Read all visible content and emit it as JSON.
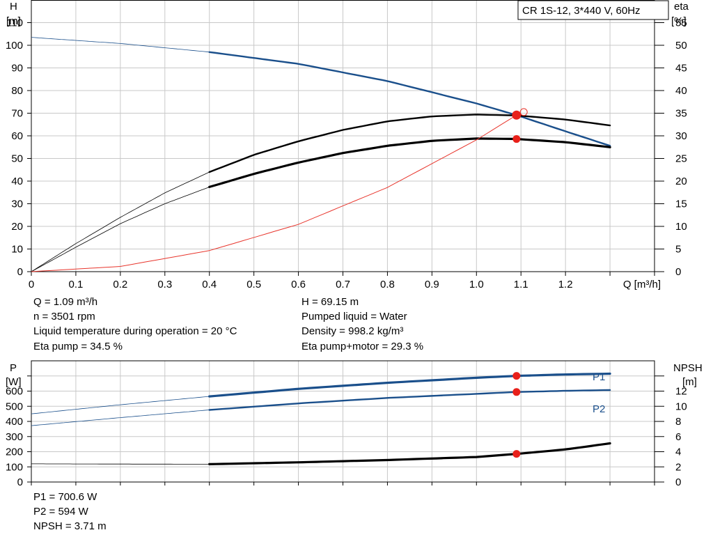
{
  "top_info": {
    "q": "Q = 1.09 m³/h",
    "n": "n = 3501 rpm",
    "liquid_temp": "Liquid temperature during operation = 20 °C",
    "eta_pump": "Eta pump = 34.5 %",
    "h": "H = 69.15 m",
    "pumped_liquid": "Pumped liquid = Water",
    "density": "Density = 998.2 kg/m³",
    "eta_pump_motor": "Eta pump+motor = 29.3 %"
  },
  "bottom_info": {
    "p1": "P1 = 700.6 W",
    "p2": "P2 = 594 W",
    "npsh": "NPSH = 3.71 m"
  },
  "chart_data": [
    {
      "type": "line",
      "title": "CR 1S-12, 3*440 V, 60Hz",
      "xlabel": "Q [m³/h]",
      "ylabel_left": [
        "H",
        "[m]"
      ],
      "ylabel_right": [
        "eta",
        "[%]"
      ],
      "xlim": [
        0,
        1.4
      ],
      "ylim_left": [
        0,
        120
      ],
      "ylim_right": [
        0,
        60
      ],
      "x_ticks": [
        "0",
        "0.1",
        "0.2",
        "0.3",
        "0.4",
        "0.5",
        "0.6",
        "0.7",
        "0.8",
        "0.9",
        "1.0",
        "1.1",
        "1.2"
      ],
      "y_left_ticks": [
        "0",
        "10",
        "20",
        "30",
        "40",
        "50",
        "60",
        "70",
        "80",
        "90",
        "100",
        "110"
      ],
      "y_right_ticks": [
        "0",
        "5",
        "10",
        "15",
        "20",
        "25",
        "30",
        "35",
        "40",
        "45",
        "50",
        "55"
      ],
      "grid": true,
      "series": [
        {
          "axis": "left",
          "color": "#1a4f8b",
          "style": "operating-range",
          "x": [
            0,
            0.2,
            0.4,
            0.6,
            0.8,
            1.0,
            1.09,
            1.2,
            1.3
          ],
          "y": [
            103.5,
            100.8,
            97,
            91.8,
            84.2,
            74.3,
            69.15,
            62,
            55.6
          ]
        },
        {
          "axis": "right",
          "color": "#000000",
          "style": "operating-range",
          "x": [
            0,
            0.1,
            0.2,
            0.3,
            0.4,
            0.5,
            0.6,
            0.7,
            0.8,
            0.9,
            1.0,
            1.09,
            1.2,
            1.3
          ],
          "y": [
            0,
            6.2,
            12,
            17.4,
            22,
            25.8,
            28.8,
            31.3,
            33.2,
            34.3,
            34.7,
            34.5,
            33.6,
            32.3
          ]
        },
        {
          "axis": "right",
          "color": "#000000",
          "style": "operating-range-thick",
          "x": [
            0,
            0.1,
            0.2,
            0.3,
            0.4,
            0.5,
            0.6,
            0.7,
            0.8,
            0.9,
            1.0,
            1.09,
            1.2,
            1.3
          ],
          "y": [
            0,
            5.4,
            10.6,
            15,
            18.7,
            21.6,
            24.1,
            26.2,
            27.8,
            28.9,
            29.4,
            29.3,
            28.6,
            27.5
          ]
        },
        {
          "axis": "left",
          "color": "#e8352c",
          "style": "system-curve",
          "x": [
            0,
            0.2,
            0.4,
            0.6,
            0.8,
            1.0,
            1.09
          ],
          "y": [
            0,
            2.3,
            9.3,
            20.9,
            37.2,
            58.2,
            69.15
          ]
        }
      ],
      "operating_points": [
        {
          "axis": "left",
          "x": 1.09,
          "y": 69.15
        },
        {
          "axis": "right",
          "x": 1.09,
          "y": 29.3
        }
      ],
      "operating_range_x": [
        0.4,
        1.3
      ]
    },
    {
      "type": "line",
      "xlim": [
        0,
        1.4
      ],
      "ylabel_left": [
        "P",
        "[W]"
      ],
      "ylabel_right": [
        "NPSH",
        "[m]"
      ],
      "ylim_left": [
        0,
        800
      ],
      "ylim_right": [
        0,
        16
      ],
      "y_left_ticks": [
        "0",
        "100",
        "200",
        "300",
        "400",
        "500",
        "600"
      ],
      "y_right_ticks": [
        "0",
        "2",
        "4",
        "6",
        "8",
        "10",
        "12"
      ],
      "grid": true,
      "series": [
        {
          "name": "P1",
          "axis": "left",
          "color": "#1a4f8b",
          "style": "operating-range-thick",
          "x": [
            0,
            0.2,
            0.4,
            0.6,
            0.8,
            1.0,
            1.09,
            1.2,
            1.3
          ],
          "y": [
            450,
            510,
            565,
            615,
            655,
            688,
            700.6,
            710,
            715
          ]
        },
        {
          "name": "P2",
          "axis": "left",
          "color": "#1a4f8b",
          "style": "operating-range",
          "x": [
            0,
            0.2,
            0.4,
            0.6,
            0.8,
            1.0,
            1.09,
            1.2,
            1.3
          ],
          "y": [
            372,
            425,
            476,
            519,
            555,
            582,
            594,
            602,
            607
          ]
        },
        {
          "name": "",
          "axis": "right",
          "color": "#000000",
          "style": "operating-range-thick",
          "x": [
            0,
            0.2,
            0.4,
            0.6,
            0.8,
            1.0,
            1.09,
            1.2,
            1.3
          ],
          "y": [
            2.4,
            2.37,
            2.35,
            2.6,
            2.9,
            3.3,
            3.71,
            4.3,
            5.1
          ]
        }
      ],
      "operating_points": [
        {
          "axis": "left",
          "x": 1.09,
          "y": 700.6
        },
        {
          "axis": "left",
          "x": 1.09,
          "y": 594
        },
        {
          "axis": "right",
          "x": 1.09,
          "y": 3.71
        }
      ],
      "operating_range_x": [
        0.4,
        1.3
      ]
    }
  ]
}
